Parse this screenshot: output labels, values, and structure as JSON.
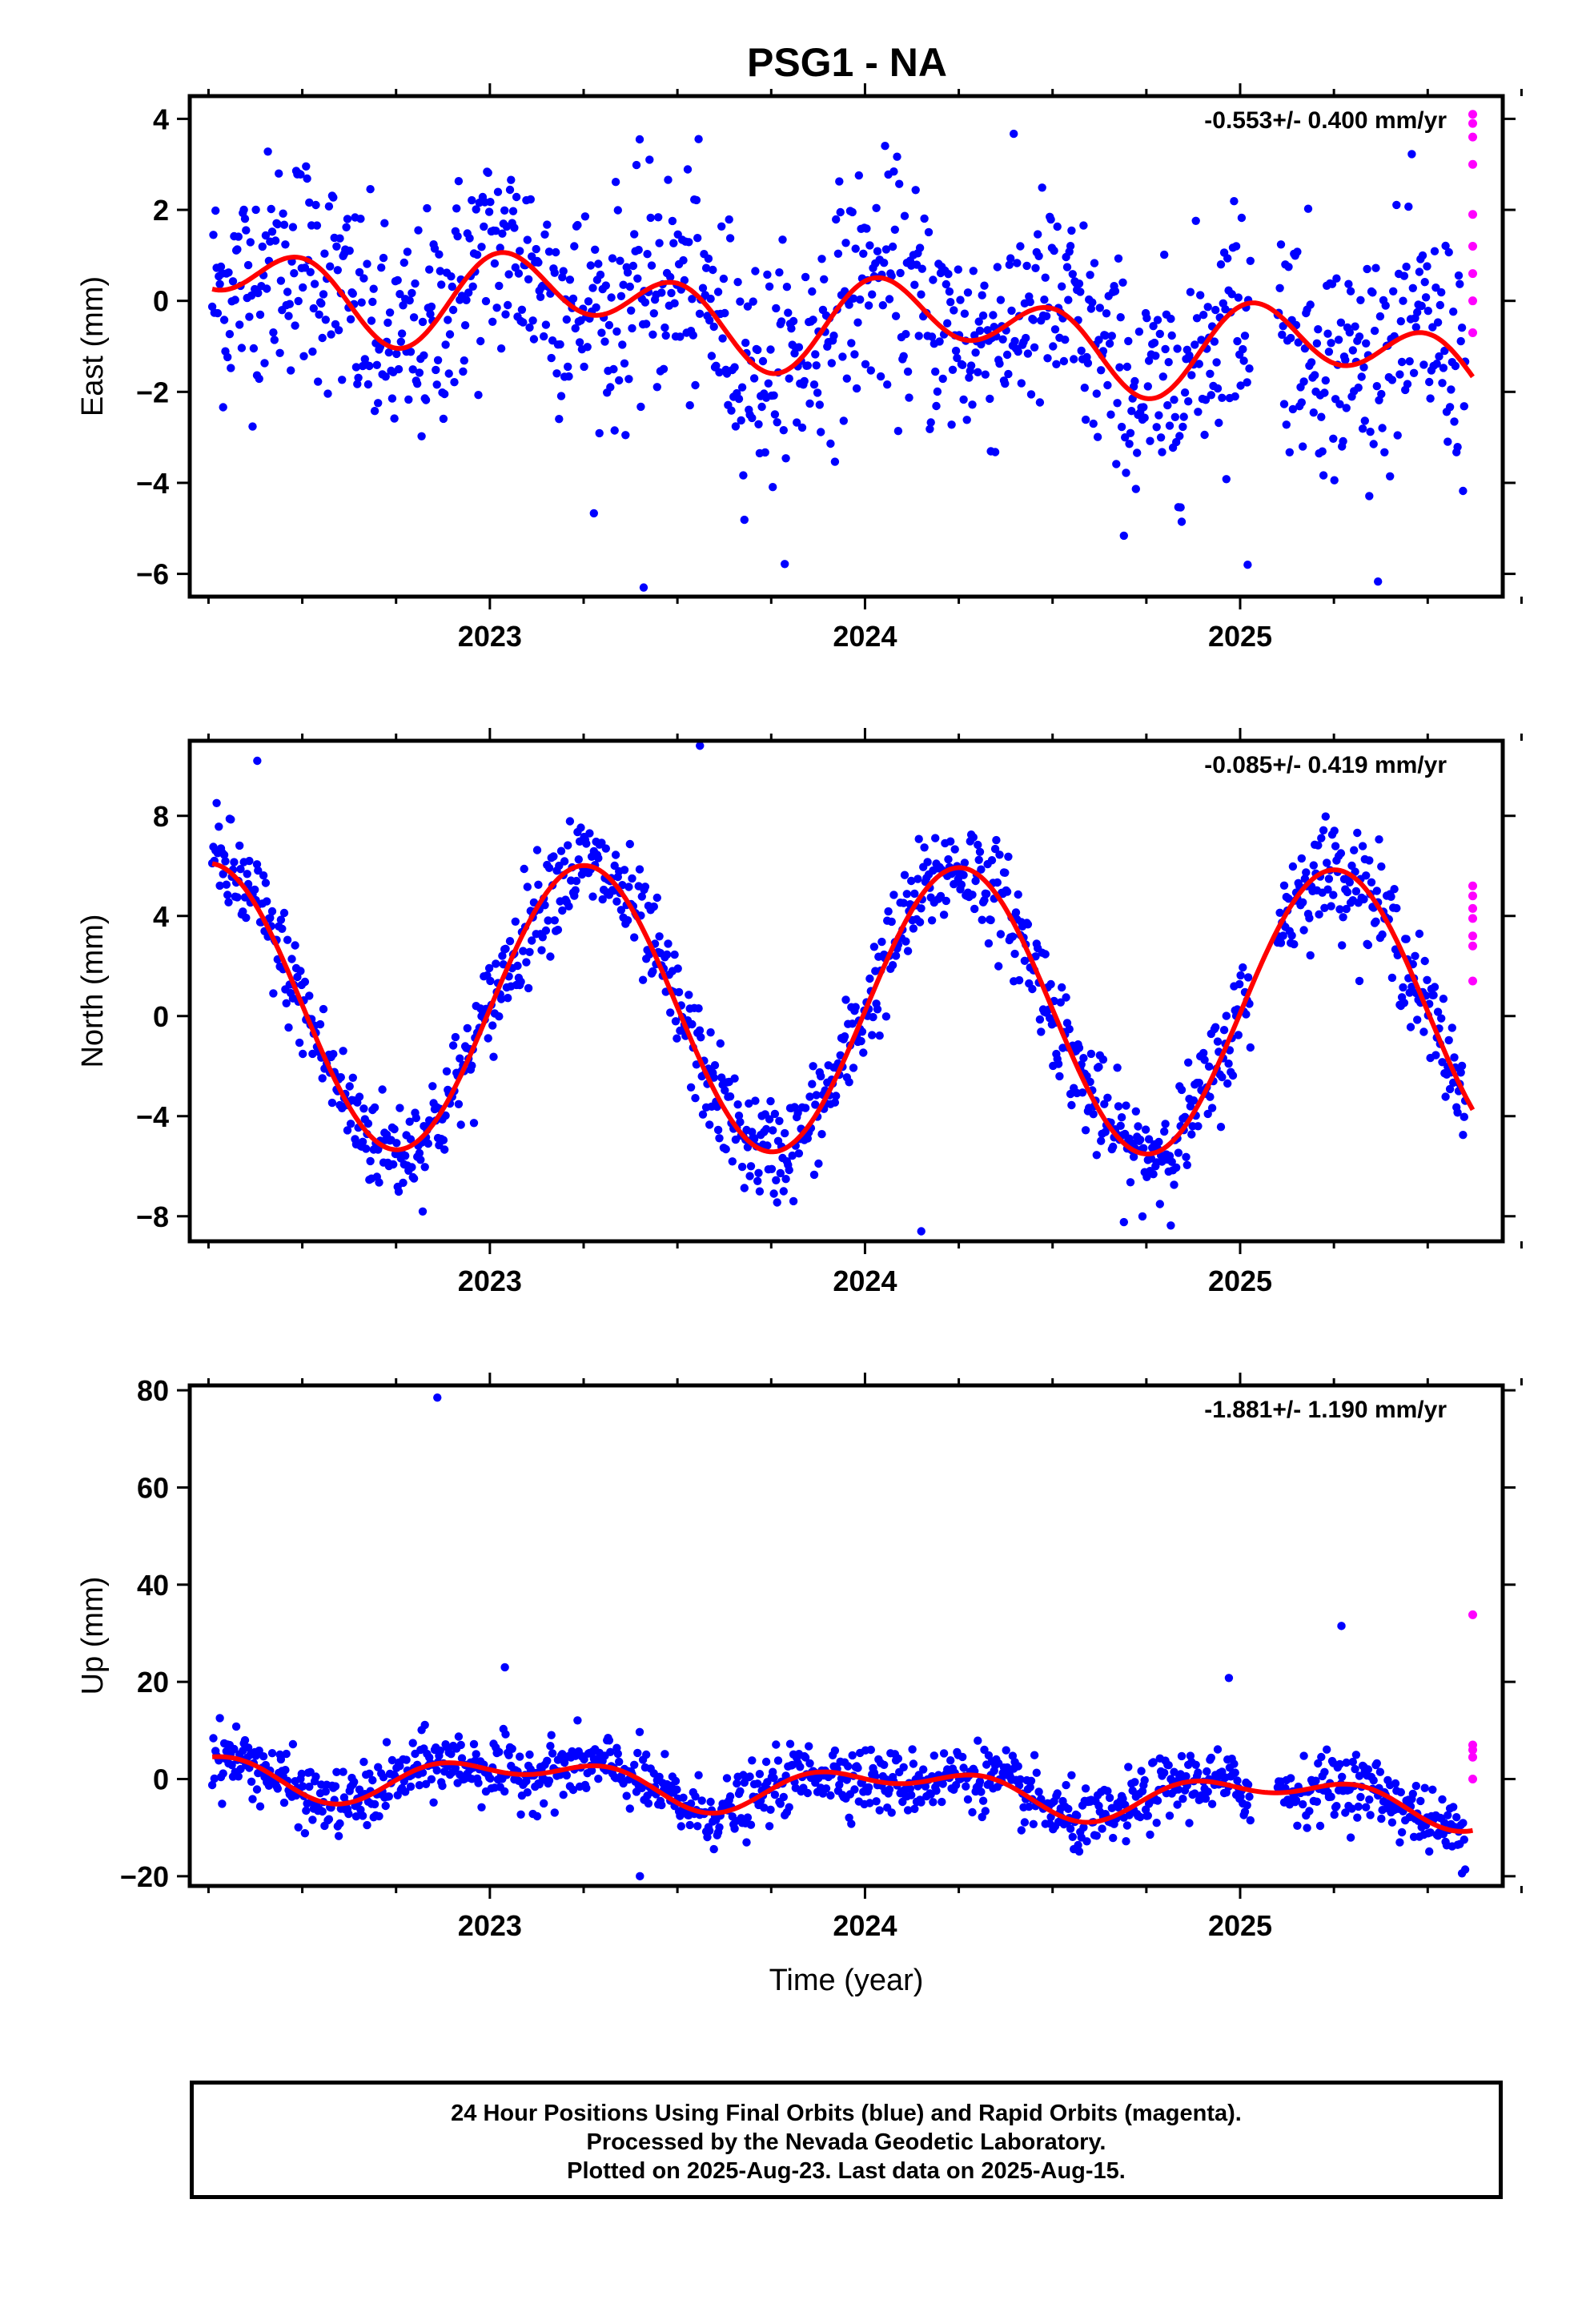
{
  "title": "PSG1 - NA",
  "xlabel": "Time (year)",
  "footer": {
    "line1": "24 Hour Positions Using Final Orbits (blue) and Rapid Orbits (magenta).",
    "line2": "Processed by the Nevada Geodetic Laboratory.",
    "line3": "Plotted on 2025-Aug-23. Last data on 2025-Aug-15."
  },
  "colors": {
    "final": "#0000ff",
    "rapid": "#ff00ff",
    "fit": "#ff0000"
  },
  "chart_data": [
    {
      "type": "scatter",
      "component": "east",
      "ylabel": "East (mm)",
      "rate": "-0.553+/- 0.400 mm/yr",
      "xlim": [
        2022.2,
        2025.7
      ],
      "ylim": [
        -6.5,
        4.5
      ],
      "yticks": [
        -6,
        -4,
        -2,
        0,
        2,
        4
      ],
      "xticks": [
        2023,
        2024,
        2025
      ],
      "xtick_labels": [
        "2023",
        "2024",
        "2025"
      ],
      "fit": {
        "x0": 2022.25,
        "y0": 0.5,
        "rate": -0.553,
        "a1": 0.55,
        "p1": 0.3,
        "a2": 0.75,
        "p2": 1.4
      },
      "scatter_sigma": 1.25,
      "rapid": {
        "x": [
          2025.62,
          2025.62,
          2025.62,
          2025.62,
          2025.62,
          2025.62,
          2025.62,
          2025.62,
          2025.62
        ],
        "y": [
          3.9,
          3.6,
          3.0,
          1.9,
          1.2,
          0.6,
          0.0,
          -0.7,
          4.1
        ]
      },
      "outliers": {
        "x": [
          2023.41,
          2025.02
        ],
        "y": [
          -6.3,
          -5.8
        ]
      }
    },
    {
      "type": "scatter",
      "component": "north",
      "ylabel": "North (mm)",
      "rate": "-0.085+/- 0.419 mm/yr",
      "xlim": [
        2022.2,
        2025.7
      ],
      "ylim": [
        -9,
        11
      ],
      "yticks": [
        -8,
        -4,
        0,
        4,
        8
      ],
      "xticks": [
        2023,
        2024,
        2025
      ],
      "xtick_labels": [
        "2023",
        "2024",
        "2025"
      ],
      "fit": {
        "x0": 2022.25,
        "y0": 0.4,
        "rate": -0.085,
        "a1": 5.7,
        "p1": -0.01,
        "a2": 0.0,
        "p2": 0.0
      },
      "scatter_sigma": 1.05,
      "rapid": {
        "x": [
          2025.62,
          2025.62,
          2025.62,
          2025.62,
          2025.62,
          2025.62,
          2025.62
        ],
        "y": [
          5.2,
          4.8,
          4.3,
          3.9,
          3.2,
          2.8,
          1.4
        ]
      },
      "outliers": {
        "x": [
          2023.56,
          2024.15,
          2022.38
        ],
        "y": [
          10.8,
          -8.6,
          10.2
        ]
      }
    },
    {
      "type": "scatter",
      "component": "up",
      "ylabel": "Up (mm)",
      "rate": "-1.881+/- 1.190 mm/yr",
      "xlim": [
        2022.2,
        2025.7
      ],
      "ylim": [
        -22,
        81
      ],
      "yticks": [
        -20,
        0,
        20,
        40,
        60,
        80
      ],
      "xticks": [
        2023,
        2024,
        2025
      ],
      "xtick_labels": [
        "2023",
        "2024",
        "2025"
      ],
      "fit": {
        "x0": 2022.25,
        "y0": 1.5,
        "rate": -1.881,
        "a1": 3.5,
        "p1": 1.0,
        "a2": 2.5,
        "p2": 3.6
      },
      "scatter_sigma": 3.3,
      "rapid": {
        "x": [
          2025.62,
          2025.62,
          2025.62,
          2025.62,
          2025.62
        ],
        "y": [
          33.8,
          7.0,
          6.0,
          4.5,
          0.0
        ]
      },
      "outliers": {
        "x": [
          2022.86,
          2023.04,
          2025.27,
          2024.97,
          2023.4
        ],
        "y": [
          78.5,
          23.0,
          31.5,
          20.8,
          -20.0
        ]
      }
    }
  ]
}
